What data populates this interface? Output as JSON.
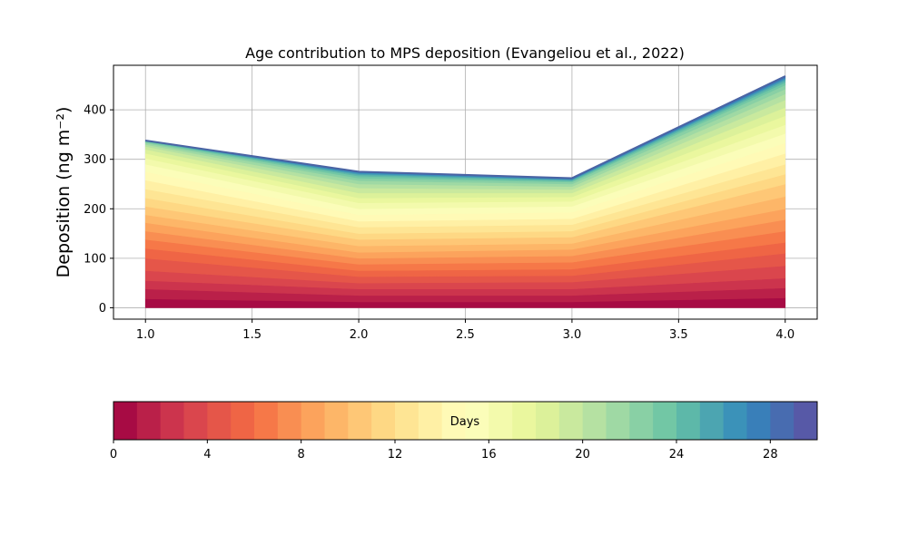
{
  "chart_data": [
    {
      "type": "area",
      "title": "Age contribution to MPS deposition (Evangeliou et al., 2022)",
      "xlabel": "",
      "ylabel": "Deposition (ng m⁻²)",
      "xlim": [
        0.85,
        4.15
      ],
      "ylim": [
        -23,
        490
      ],
      "xticks": [
        "1.0",
        "1.5",
        "2.0",
        "2.5",
        "3.0",
        "3.5",
        "4.0"
      ],
      "yticks": [
        "0",
        "100",
        "200",
        "300",
        "400"
      ],
      "grid": true,
      "stacked": true,
      "x": [
        1,
        2,
        3,
        4
      ],
      "bands_days": 30,
      "cumulative_levels_by_day": [
        [
          0,
          0,
          0,
          0
        ],
        [
          18,
          12,
          12,
          20
        ],
        [
          38,
          25,
          25,
          40
        ],
        [
          55,
          38,
          38,
          60
        ],
        [
          75,
          50,
          52,
          85
        ],
        [
          100,
          63,
          65,
          110
        ],
        [
          120,
          75,
          78,
          132
        ],
        [
          138,
          88,
          92,
          155
        ],
        [
          155,
          100,
          105,
          178
        ],
        [
          172,
          112,
          118,
          200
        ],
        [
          188,
          125,
          130,
          225
        ],
        [
          205,
          138,
          143,
          250
        ],
        [
          222,
          150,
          155,
          270
        ],
        [
          240,
          163,
          168,
          290
        ],
        [
          258,
          175,
          180,
          312
        ],
        [
          275,
          188,
          193,
          333
        ],
        [
          290,
          200,
          205,
          352
        ],
        [
          302,
          212,
          215,
          370
        ],
        [
          312,
          222,
          224,
          388
        ],
        [
          320,
          232,
          232,
          405
        ],
        [
          326,
          242,
          239,
          420
        ],
        [
          330,
          250,
          245,
          432
        ],
        [
          333,
          257,
          250,
          442
        ],
        [
          335,
          262,
          254,
          450
        ],
        [
          336,
          266,
          256,
          455
        ],
        [
          337,
          269,
          258,
          459
        ],
        [
          337,
          271,
          259,
          462
        ],
        [
          338,
          273,
          260,
          464
        ],
        [
          338,
          274,
          261,
          466
        ],
        [
          338,
          275,
          261,
          467
        ],
        [
          338,
          275,
          262,
          468
        ]
      ],
      "total": [
        338,
        275,
        262,
        468
      ],
      "total_line_color": "#4a64a4"
    },
    {
      "type": "heatmap",
      "label": "Days",
      "range": [
        0,
        30
      ],
      "ticks": [
        "0",
        "4",
        "8",
        "12",
        "16",
        "20",
        "24",
        "28"
      ],
      "tick_values": [
        0,
        4,
        8,
        12,
        16,
        20,
        24,
        28
      ],
      "colormap": "Spectral",
      "colormap_stops": [
        "#9e0142",
        "#d53e4f",
        "#f46d43",
        "#fdae61",
        "#fee08b",
        "#ffffbf",
        "#e6f598",
        "#abdda4",
        "#66c2a5",
        "#3288bd",
        "#5e4fa2"
      ]
    }
  ]
}
